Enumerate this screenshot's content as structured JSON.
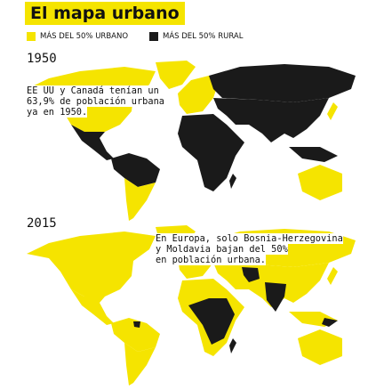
{
  "header": {
    "title": "El mapa urbano"
  },
  "legend": {
    "items": [
      {
        "label": "MÁS DEL 50% URBANO"
      },
      {
        "label": "MÁS DEL 50% RURAL"
      }
    ]
  },
  "panels": [
    {
      "year": "1950",
      "note": [
        "EE UU y Canadá tenían un",
        "63,9% de población urbana",
        "ya en 1950."
      ]
    },
    {
      "year": "2015",
      "note": [
        "En Europa, solo Bosnia-Herzegovina",
        "y Moldavia bajan del 50%",
        "en población urbana."
      ]
    }
  ]
}
